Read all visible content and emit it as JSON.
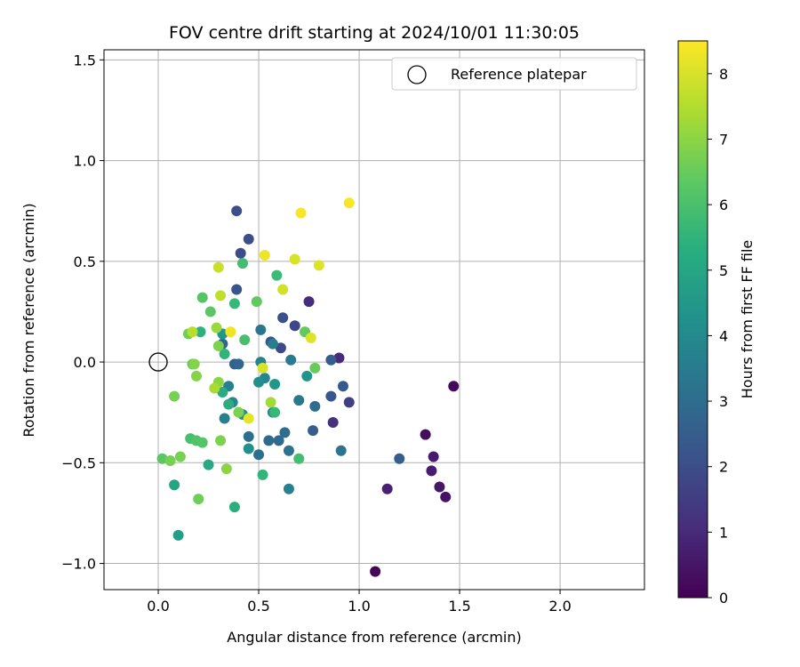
{
  "chart_data": {
    "type": "scatter",
    "title": "FOV centre drift starting at 2024/10/01 11:30:05",
    "xlabel": "Angular distance from reference (arcmin)",
    "ylabel": "Rotation from reference (arcmin)",
    "xlim": [
      -0.27,
      2.42
    ],
    "ylim": [
      -1.13,
      1.55
    ],
    "xticks": [
      0.0,
      0.5,
      1.0,
      1.5,
      2.0
    ],
    "xtick_labels": [
      "0.0",
      "0.5",
      "1.0",
      "1.5",
      "2.0"
    ],
    "yticks": [
      -1.0,
      -0.5,
      0.0,
      0.5,
      1.0,
      1.5
    ],
    "ytick_labels": [
      "−1.0",
      "−0.5",
      "0.0",
      "0.5",
      "1.0",
      "1.5"
    ],
    "grid": true,
    "legend": {
      "position": "top-right",
      "entries": [
        "Reference platepar"
      ]
    },
    "reference_point": {
      "x": 0.0,
      "y": 0.0
    },
    "colorbar": {
      "label": "Hours from first FF file",
      "colormap": "viridis",
      "range": [
        0,
        8.5
      ],
      "ticks": [
        0,
        1,
        2,
        3,
        4,
        5,
        6,
        7,
        8
      ],
      "tick_labels": [
        "0",
        "1",
        "2",
        "3",
        "4",
        "5",
        "6",
        "7",
        "8"
      ]
    },
    "points": [
      {
        "x": 1.08,
        "y": -1.04,
        "c": 0.1
      },
      {
        "x": 1.47,
        "y": -0.12,
        "c": 0.2
      },
      {
        "x": 1.33,
        "y": -0.36,
        "c": 0.3
      },
      {
        "x": 1.43,
        "y": -0.67,
        "c": 0.4
      },
      {
        "x": 1.4,
        "y": -0.62,
        "c": 0.5
      },
      {
        "x": 1.37,
        "y": -0.47,
        "c": 0.6
      },
      {
        "x": 1.36,
        "y": -0.54,
        "c": 0.7
      },
      {
        "x": 1.14,
        "y": -0.63,
        "c": 0.8
      },
      {
        "x": 0.9,
        "y": 0.02,
        "c": 1.0
      },
      {
        "x": 0.75,
        "y": 0.3,
        "c": 1.1
      },
      {
        "x": 0.87,
        "y": -0.3,
        "c": 1.2
      },
      {
        "x": 0.95,
        "y": -0.2,
        "c": 1.6
      },
      {
        "x": 0.68,
        "y": 0.18,
        "c": 1.8
      },
      {
        "x": 0.61,
        "y": 0.07,
        "c": 1.9
      },
      {
        "x": 0.45,
        "y": 0.61,
        "c": 2.0
      },
      {
        "x": 0.41,
        "y": 0.54,
        "c": 2.0
      },
      {
        "x": 0.39,
        "y": 0.75,
        "c": 2.1
      },
      {
        "x": 0.62,
        "y": 0.22,
        "c": 2.1
      },
      {
        "x": 0.56,
        "y": 0.1,
        "c": 2.2
      },
      {
        "x": 0.39,
        "y": 0.36,
        "c": 2.3
      },
      {
        "x": 0.86,
        "y": -0.17,
        "c": 2.3
      },
      {
        "x": 0.92,
        "y": -0.12,
        "c": 2.4
      },
      {
        "x": 0.86,
        "y": 0.01,
        "c": 2.5
      },
      {
        "x": 1.2,
        "y": -0.48,
        "c": 2.5
      },
      {
        "x": 0.77,
        "y": -0.34,
        "c": 2.5
      },
      {
        "x": 0.38,
        "y": -0.01,
        "c": 2.6
      },
      {
        "x": 0.32,
        "y": 0.09,
        "c": 2.7
      },
      {
        "x": 0.4,
        "y": -0.01,
        "c": 2.8
      },
      {
        "x": 0.6,
        "y": -0.39,
        "c": 2.9
      },
      {
        "x": 0.55,
        "y": -0.39,
        "c": 2.9
      },
      {
        "x": 0.63,
        "y": -0.35,
        "c": 3.0
      },
      {
        "x": 0.78,
        "y": -0.22,
        "c": 3.0
      },
      {
        "x": 0.5,
        "y": -0.46,
        "c": 3.1
      },
      {
        "x": 0.45,
        "y": -0.37,
        "c": 3.1
      },
      {
        "x": 0.65,
        "y": -0.44,
        "c": 3.2
      },
      {
        "x": 0.91,
        "y": -0.44,
        "c": 3.2
      },
      {
        "x": 0.51,
        "y": 0.16,
        "c": 3.3
      },
      {
        "x": 0.7,
        "y": -0.19,
        "c": 3.4
      },
      {
        "x": 0.66,
        "y": 0.01,
        "c": 3.5
      },
      {
        "x": 0.57,
        "y": 0.09,
        "c": 3.6
      },
      {
        "x": 0.35,
        "y": -0.12,
        "c": 3.7
      },
      {
        "x": 0.33,
        "y": -0.28,
        "c": 3.7
      },
      {
        "x": 0.65,
        "y": -0.63,
        "c": 3.7
      },
      {
        "x": 0.51,
        "y": 0.0,
        "c": 3.8
      },
      {
        "x": 0.53,
        "y": -0.08,
        "c": 3.9
      },
      {
        "x": 0.37,
        "y": -0.2,
        "c": 3.9
      },
      {
        "x": 0.57,
        "y": -0.25,
        "c": 4.0
      },
      {
        "x": 0.42,
        "y": -0.26,
        "c": 4.2
      },
      {
        "x": 0.5,
        "y": -0.1,
        "c": 4.2
      },
      {
        "x": 0.45,
        "y": -0.43,
        "c": 4.3
      },
      {
        "x": 0.74,
        "y": -0.07,
        "c": 4.4
      },
      {
        "x": 0.32,
        "y": 0.14,
        "c": 4.5
      },
      {
        "x": 0.58,
        "y": -0.11,
        "c": 4.5
      },
      {
        "x": 0.1,
        "y": -0.86,
        "c": 4.8
      },
      {
        "x": 0.08,
        "y": -0.61,
        "c": 5.0
      },
      {
        "x": 0.25,
        "y": -0.51,
        "c": 5.1
      },
      {
        "x": 0.32,
        "y": -0.15,
        "c": 5.2
      },
      {
        "x": 0.38,
        "y": -0.72,
        "c": 5.3
      },
      {
        "x": 0.35,
        "y": -0.21,
        "c": 5.3
      },
      {
        "x": 0.21,
        "y": 0.15,
        "c": 5.4
      },
      {
        "x": 0.33,
        "y": 0.04,
        "c": 5.5
      },
      {
        "x": 0.52,
        "y": -0.56,
        "c": 5.6
      },
      {
        "x": 0.38,
        "y": 0.29,
        "c": 5.7
      },
      {
        "x": 0.58,
        "y": -0.25,
        "c": 5.7
      },
      {
        "x": 0.59,
        "y": 0.43,
        "c": 5.8
      },
      {
        "x": 0.7,
        "y": -0.48,
        "c": 5.9
      },
      {
        "x": 0.42,
        "y": 0.49,
        "c": 5.9
      },
      {
        "x": 0.16,
        "y": -0.38,
        "c": 6.0
      },
      {
        "x": 0.43,
        "y": 0.11,
        "c": 6.0
      },
      {
        "x": 0.19,
        "y": -0.39,
        "c": 6.1
      },
      {
        "x": 0.22,
        "y": -0.4,
        "c": 6.2
      },
      {
        "x": 0.22,
        "y": 0.32,
        "c": 6.2
      },
      {
        "x": 0.02,
        "y": -0.48,
        "c": 6.3
      },
      {
        "x": 0.26,
        "y": 0.25,
        "c": 6.3
      },
      {
        "x": 0.49,
        "y": 0.3,
        "c": 6.4
      },
      {
        "x": 0.73,
        "y": 0.15,
        "c": 6.4
      },
      {
        "x": 0.78,
        "y": -0.03,
        "c": 6.5
      },
      {
        "x": 0.17,
        "y": -0.01,
        "c": 6.5
      },
      {
        "x": 0.15,
        "y": 0.14,
        "c": 6.6
      },
      {
        "x": 0.2,
        "y": -0.68,
        "c": 6.6
      },
      {
        "x": 0.06,
        "y": -0.49,
        "c": 6.7
      },
      {
        "x": 0.11,
        "y": -0.47,
        "c": 6.7
      },
      {
        "x": 0.08,
        "y": -0.17,
        "c": 6.7
      },
      {
        "x": 0.31,
        "y": -0.39,
        "c": 6.8
      },
      {
        "x": 0.3,
        "y": 0.08,
        "c": 6.8
      },
      {
        "x": 0.4,
        "y": -0.25,
        "c": 6.8
      },
      {
        "x": 0.18,
        "y": -0.01,
        "c": 6.9
      },
      {
        "x": 0.19,
        "y": -0.07,
        "c": 6.9
      },
      {
        "x": 0.3,
        "y": -0.1,
        "c": 7.0
      },
      {
        "x": 0.34,
        "y": -0.53,
        "c": 7.0
      },
      {
        "x": 0.29,
        "y": 0.17,
        "c": 7.2
      },
      {
        "x": 0.56,
        "y": -0.2,
        "c": 7.3
      },
      {
        "x": 0.28,
        "y": -0.13,
        "c": 7.4
      },
      {
        "x": 0.17,
        "y": 0.15,
        "c": 7.6
      },
      {
        "x": 0.31,
        "y": 0.33,
        "c": 7.7
      },
      {
        "x": 0.3,
        "y": 0.47,
        "c": 7.8
      },
      {
        "x": 0.62,
        "y": 0.36,
        "c": 7.9
      },
      {
        "x": 0.52,
        "y": -0.03,
        "c": 8.0
      },
      {
        "x": 0.68,
        "y": 0.51,
        "c": 8.0
      },
      {
        "x": 0.8,
        "y": 0.48,
        "c": 8.1
      },
      {
        "x": 0.76,
        "y": 0.12,
        "c": 8.1
      },
      {
        "x": 0.45,
        "y": -0.28,
        "c": 8.2
      },
      {
        "x": 0.53,
        "y": 0.53,
        "c": 8.3
      },
      {
        "x": 0.36,
        "y": 0.15,
        "c": 8.3
      },
      {
        "x": 0.71,
        "y": 0.74,
        "c": 8.4
      },
      {
        "x": 0.95,
        "y": 0.79,
        "c": 8.4
      }
    ]
  }
}
